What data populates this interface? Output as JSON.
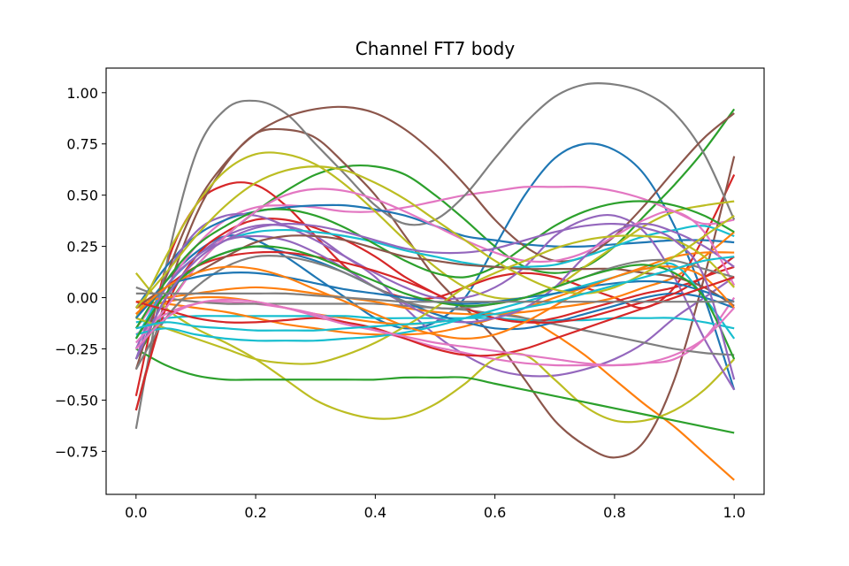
{
  "chart_data": {
    "type": "line",
    "title": "Channel FT7 body",
    "xlabel": "",
    "ylabel": "",
    "xlim": [
      -0.05,
      1.05
    ],
    "ylim": [
      -0.96,
      1.12
    ],
    "x_ticks": [
      0.0,
      0.2,
      0.4,
      0.6,
      0.8,
      1.0
    ],
    "x_tick_labels": [
      "0.0",
      "0.2",
      "0.4",
      "0.6",
      "0.8",
      "1.0"
    ],
    "y_ticks": [
      -0.75,
      -0.5,
      -0.25,
      0.0,
      0.25,
      0.5,
      0.75,
      1.0
    ],
    "y_tick_labels": [
      "−0.75",
      "−0.50",
      "−0.25",
      "0.00",
      "0.25",
      "0.50",
      "0.75",
      "1.00"
    ],
    "grid": false,
    "legend": "none",
    "x": [
      0.0,
      0.05,
      0.1,
      0.15,
      0.2,
      0.25,
      0.3,
      0.35,
      0.4,
      0.45,
      0.5,
      0.55,
      0.6,
      0.65,
      0.7,
      0.75,
      0.8,
      0.85,
      0.9,
      0.95,
      1.0
    ],
    "series": [
      {
        "color": "#1f77b4",
        "values": [
          -0.1,
          0.08,
          0.22,
          0.3,
          0.28,
          0.2,
          0.1,
          0.0,
          -0.1,
          -0.15,
          -0.12,
          0.0,
          0.25,
          0.5,
          0.68,
          0.75,
          0.72,
          0.6,
          0.35,
          0.0,
          -0.45
        ]
      },
      {
        "color": "#ff7f0e",
        "values": [
          -0.05,
          -0.02,
          0.0,
          0.0,
          -0.02,
          -0.05,
          -0.08,
          -0.1,
          -0.12,
          -0.13,
          -0.12,
          -0.1,
          -0.08,
          -0.1,
          -0.18,
          -0.28,
          -0.4,
          -0.52,
          -0.63,
          -0.76,
          -0.89
        ]
      },
      {
        "color": "#2ca02c",
        "values": [
          -0.3,
          -0.05,
          0.15,
          0.3,
          0.42,
          0.52,
          0.6,
          0.64,
          0.64,
          0.6,
          0.5,
          0.38,
          0.25,
          0.15,
          0.12,
          0.15,
          0.25,
          0.4,
          0.55,
          0.72,
          0.92
        ]
      },
      {
        "color": "#d62728",
        "values": [
          -0.48,
          0.15,
          0.45,
          0.55,
          0.55,
          0.45,
          0.3,
          0.15,
          0.05,
          0.0,
          0.0,
          0.05,
          0.1,
          0.12,
          0.1,
          0.05,
          0.0,
          -0.05,
          0.05,
          0.3,
          0.6
        ]
      },
      {
        "color": "#9467bd",
        "values": [
          -0.2,
          0.05,
          0.2,
          0.3,
          0.35,
          0.35,
          0.3,
          0.2,
          0.1,
          -0.05,
          -0.18,
          -0.28,
          -0.35,
          -0.38,
          -0.38,
          -0.35,
          -0.3,
          -0.22,
          -0.1,
          0.0,
          0.1
        ]
      },
      {
        "color": "#8c564b",
        "values": [
          -0.55,
          0.0,
          0.4,
          0.65,
          0.8,
          0.82,
          0.78,
          0.65,
          0.5,
          0.3,
          0.1,
          -0.05,
          -0.2,
          -0.4,
          -0.6,
          -0.72,
          -0.78,
          -0.7,
          -0.4,
          0.1,
          0.69
        ]
      },
      {
        "color": "#e377c2",
        "values": [
          -0.15,
          0.05,
          0.25,
          0.38,
          0.44,
          0.45,
          0.44,
          0.42,
          0.42,
          0.44,
          0.47,
          0.5,
          0.52,
          0.54,
          0.54,
          0.54,
          0.52,
          0.48,
          0.42,
          0.36,
          0.38
        ]
      },
      {
        "color": "#7f7f7f",
        "values": [
          -0.64,
          0.15,
          0.7,
          0.92,
          0.96,
          0.9,
          0.75,
          0.6,
          0.45,
          0.36,
          0.38,
          0.5,
          0.68,
          0.85,
          0.98,
          1.04,
          1.04,
          1.0,
          0.9,
          0.7,
          0.38
        ]
      },
      {
        "color": "#bcbd22",
        "values": [
          0.12,
          -0.05,
          -0.15,
          -0.22,
          -0.3,
          -0.4,
          -0.5,
          -0.56,
          -0.59,
          -0.58,
          -0.52,
          -0.42,
          -0.3,
          -0.28,
          -0.4,
          -0.53,
          -0.6,
          -0.6,
          -0.55,
          -0.45,
          -0.3
        ]
      },
      {
        "color": "#17becf",
        "values": [
          -0.12,
          -0.1,
          -0.09,
          -0.09,
          -0.09,
          -0.09,
          -0.09,
          -0.09,
          -0.1,
          -0.1,
          -0.1,
          -0.1,
          -0.1,
          -0.11,
          -0.11,
          -0.11,
          -0.1,
          -0.1,
          -0.1,
          -0.12,
          -0.15
        ]
      },
      {
        "color": "#1f77b4",
        "values": [
          -0.05,
          0.15,
          0.3,
          0.38,
          0.42,
          0.44,
          0.45,
          0.45,
          0.43,
          0.4,
          0.35,
          0.3,
          0.28,
          0.26,
          0.25,
          0.25,
          0.26,
          0.27,
          0.28,
          0.28,
          0.27
        ]
      },
      {
        "color": "#ff7f0e",
        "values": [
          -0.02,
          -0.03,
          -0.05,
          -0.07,
          -0.1,
          -0.13,
          -0.15,
          -0.17,
          -0.18,
          -0.18,
          -0.17,
          -0.14,
          -0.1,
          -0.05,
          0.0,
          0.05,
          0.1,
          0.15,
          0.2,
          0.22,
          0.22
        ]
      },
      {
        "color": "#2ca02c",
        "values": [
          -0.25,
          -0.33,
          -0.38,
          -0.4,
          -0.4,
          -0.4,
          -0.4,
          -0.4,
          -0.4,
          -0.39,
          -0.39,
          -0.39,
          -0.42,
          -0.45,
          -0.48,
          -0.51,
          -0.54,
          -0.57,
          -0.6,
          -0.63,
          -0.66
        ]
      },
      {
        "color": "#d62728",
        "values": [
          -0.55,
          -0.05,
          0.2,
          0.32,
          0.38,
          0.38,
          0.34,
          0.28,
          0.2,
          0.1,
          0.02,
          -0.05,
          -0.1,
          -0.12,
          -0.1,
          -0.06,
          -0.02,
          0.02,
          0.05,
          0.1,
          0.2
        ]
      },
      {
        "color": "#9467bd",
        "values": [
          -0.3,
          0.1,
          0.32,
          0.4,
          0.4,
          0.35,
          0.28,
          0.2,
          0.12,
          0.05,
          0.0,
          0.0,
          0.05,
          0.15,
          0.3,
          0.38,
          0.4,
          0.32,
          0.1,
          -0.2,
          -0.45
        ]
      },
      {
        "color": "#8c564b",
        "values": [
          -0.35,
          0.1,
          0.45,
          0.66,
          0.8,
          0.88,
          0.92,
          0.93,
          0.9,
          0.82,
          0.7,
          0.55,
          0.38,
          0.25,
          0.18,
          0.2,
          0.3,
          0.45,
          0.62,
          0.78,
          0.9
        ]
      },
      {
        "color": "#e377c2",
        "values": [
          -0.18,
          -0.08,
          -0.03,
          -0.02,
          -0.03,
          -0.05,
          -0.08,
          -0.12,
          -0.16,
          -0.2,
          -0.24,
          -0.27,
          -0.3,
          -0.32,
          -0.33,
          -0.33,
          -0.33,
          -0.32,
          -0.3,
          -0.2,
          0.0
        ]
      },
      {
        "color": "#7f7f7f",
        "values": [
          0.05,
          0.0,
          -0.02,
          -0.03,
          -0.03,
          -0.03,
          -0.03,
          -0.03,
          -0.03,
          -0.04,
          -0.05,
          -0.06,
          -0.08,
          -0.1,
          -0.13,
          -0.16,
          -0.19,
          -0.22,
          -0.25,
          -0.27,
          -0.28
        ]
      },
      {
        "color": "#bcbd22",
        "values": [
          -0.1,
          0.2,
          0.45,
          0.62,
          0.7,
          0.7,
          0.65,
          0.55,
          0.42,
          0.28,
          0.15,
          0.05,
          0.0,
          0.0,
          0.05,
          0.15,
          0.25,
          0.35,
          0.42,
          0.45,
          0.47
        ]
      },
      {
        "color": "#17becf",
        "values": [
          -0.2,
          0.05,
          0.2,
          0.28,
          0.32,
          0.33,
          0.32,
          0.3,
          0.27,
          0.23,
          0.2,
          0.17,
          0.15,
          0.15,
          0.16,
          0.2,
          0.25,
          0.3,
          0.33,
          0.35,
          0.3
        ]
      },
      {
        "color": "#1f77b4",
        "values": [
          -0.3,
          0.0,
          0.15,
          0.22,
          0.25,
          0.22,
          0.18,
          0.12,
          0.05,
          -0.02,
          -0.08,
          -0.12,
          -0.15,
          -0.15,
          -0.12,
          -0.08,
          -0.04,
          0.0,
          0.02,
          0.0,
          -0.05
        ]
      },
      {
        "color": "#ff7f0e",
        "values": [
          -0.02,
          0.0,
          0.02,
          0.04,
          0.05,
          0.04,
          0.02,
          0.0,
          -0.02,
          -0.05,
          -0.07,
          -0.08,
          -0.08,
          -0.07,
          -0.05,
          -0.03,
          0.0,
          0.05,
          0.1,
          0.2,
          0.32
        ]
      },
      {
        "color": "#2ca02c",
        "values": [
          -0.15,
          0.08,
          0.25,
          0.35,
          0.42,
          0.43,
          0.4,
          0.34,
          0.26,
          0.18,
          0.12,
          0.1,
          0.15,
          0.25,
          0.35,
          0.42,
          0.46,
          0.47,
          0.45,
          0.4,
          0.32
        ]
      },
      {
        "color": "#d62728",
        "values": [
          -0.08,
          0.05,
          0.15,
          0.2,
          0.22,
          0.22,
          0.2,
          0.17,
          0.13,
          0.08,
          0.02,
          -0.05,
          -0.1,
          -0.12,
          -0.12,
          -0.1,
          -0.06,
          -0.02,
          0.02,
          0.1,
          0.15
        ]
      },
      {
        "color": "#9467bd",
        "values": [
          -0.25,
          0.05,
          0.2,
          0.28,
          0.3,
          0.28,
          0.22,
          0.14,
          0.05,
          -0.03,
          -0.1,
          -0.12,
          -0.1,
          -0.05,
          0.05,
          0.2,
          0.32,
          0.36,
          0.32,
          0.25,
          0.15
        ]
      },
      {
        "color": "#8c564b",
        "values": [
          -0.05,
          0.05,
          0.12,
          0.2,
          0.27,
          0.3,
          0.3,
          0.28,
          0.24,
          0.2,
          0.18,
          0.16,
          0.15,
          0.14,
          0.14,
          0.14,
          0.14,
          0.12,
          0.1,
          0.05,
          -0.04
        ]
      },
      {
        "color": "#e377c2",
        "values": [
          -0.22,
          -0.05,
          0.15,
          0.3,
          0.42,
          0.5,
          0.53,
          0.52,
          0.48,
          0.42,
          0.35,
          0.28,
          0.22,
          0.18,
          0.18,
          0.22,
          0.3,
          0.38,
          0.42,
          0.32,
          0.06
        ]
      },
      {
        "color": "#7f7f7f",
        "values": [
          -0.35,
          -0.1,
          0.05,
          0.15,
          0.2,
          0.2,
          0.17,
          0.12,
          0.05,
          -0.02,
          -0.05,
          -0.05,
          -0.03,
          0.0,
          0.05,
          0.1,
          0.15,
          0.18,
          0.18,
          0.14,
          0.1
        ]
      },
      {
        "color": "#bcbd22",
        "values": [
          -0.1,
          -0.15,
          -0.2,
          -0.25,
          -0.3,
          -0.32,
          -0.32,
          -0.28,
          -0.22,
          -0.14,
          -0.05,
          0.05,
          0.12,
          0.18,
          0.24,
          0.28,
          0.3,
          0.3,
          0.28,
          0.2,
          0.05
        ]
      },
      {
        "color": "#17becf",
        "values": [
          -0.18,
          -0.15,
          -0.18,
          -0.2,
          -0.21,
          -0.21,
          -0.21,
          -0.2,
          -0.19,
          -0.17,
          -0.14,
          -0.1,
          -0.06,
          -0.02,
          0.02,
          0.06,
          0.1,
          0.14,
          0.16,
          0.0,
          -0.2
        ]
      },
      {
        "color": "#1f77b4",
        "values": [
          -0.1,
          0.05,
          0.1,
          0.12,
          0.12,
          0.1,
          0.07,
          0.04,
          0.02,
          0.0,
          -0.02,
          -0.03,
          -0.02,
          0.0,
          0.02,
          0.05,
          0.07,
          0.08,
          0.07,
          0.03,
          -0.02
        ]
      },
      {
        "color": "#ff7f0e",
        "values": [
          -0.08,
          0.05,
          0.12,
          0.15,
          0.14,
          0.1,
          0.04,
          -0.02,
          -0.08,
          -0.14,
          -0.18,
          -0.2,
          -0.18,
          -0.12,
          -0.04,
          0.04,
          0.1,
          0.14,
          0.15,
          0.1,
          -0.05
        ]
      },
      {
        "color": "#2ca02c",
        "values": [
          -0.2,
          0.02,
          0.15,
          0.22,
          0.25,
          0.24,
          0.2,
          0.14,
          0.08,
          0.02,
          -0.02,
          -0.04,
          -0.03,
          0.0,
          0.05,
          0.1,
          0.14,
          0.16,
          0.12,
          0.0,
          -0.3
        ]
      },
      {
        "color": "#d62728",
        "values": [
          -0.02,
          -0.06,
          -0.1,
          -0.12,
          -0.12,
          -0.11,
          -0.1,
          -0.12,
          -0.15,
          -0.2,
          -0.25,
          -0.28,
          -0.28,
          -0.25,
          -0.2,
          -0.15,
          -0.1,
          -0.05,
          0.0,
          0.05,
          0.1
        ]
      },
      {
        "color": "#9467bd",
        "values": [
          -0.3,
          0.0,
          0.18,
          0.28,
          0.34,
          0.36,
          0.35,
          0.32,
          0.28,
          0.24,
          0.22,
          0.22,
          0.24,
          0.28,
          0.32,
          0.35,
          0.36,
          0.34,
          0.28,
          0.1,
          -0.4
        ]
      },
      {
        "color": "#e377c2",
        "values": [
          -0.25,
          -0.1,
          -0.03,
          -0.01,
          -0.02,
          -0.05,
          -0.09,
          -0.13,
          -0.16,
          -0.19,
          -0.22,
          -0.24,
          -0.26,
          -0.28,
          -0.3,
          -0.32,
          -0.33,
          -0.32,
          -0.28,
          -0.2,
          -0.05
        ]
      },
      {
        "color": "#7f7f7f",
        "values": [
          0.02,
          0.02,
          0.02,
          0.02,
          0.02,
          0.02,
          0.01,
          0.0,
          -0.01,
          -0.02,
          -0.02,
          -0.02,
          -0.02,
          -0.02,
          -0.02,
          -0.02,
          -0.02,
          -0.02,
          -0.02,
          -0.02,
          -0.02
        ]
      },
      {
        "color": "#bcbd22",
        "values": [
          -0.05,
          0.12,
          0.3,
          0.45,
          0.56,
          0.62,
          0.64,
          0.62,
          0.56,
          0.48,
          0.38,
          0.28,
          0.18,
          0.1,
          0.04,
          0.02,
          0.05,
          0.12,
          0.2,
          0.3,
          0.4
        ]
      },
      {
        "color": "#17becf",
        "values": [
          -0.15,
          -0.12,
          -0.14,
          -0.15,
          -0.16,
          -0.16,
          -0.16,
          -0.15,
          -0.14,
          -0.13,
          -0.12,
          -0.1,
          -0.08,
          -0.05,
          -0.02,
          0.02,
          0.06,
          0.1,
          0.14,
          0.18,
          0.2
        ]
      }
    ]
  }
}
